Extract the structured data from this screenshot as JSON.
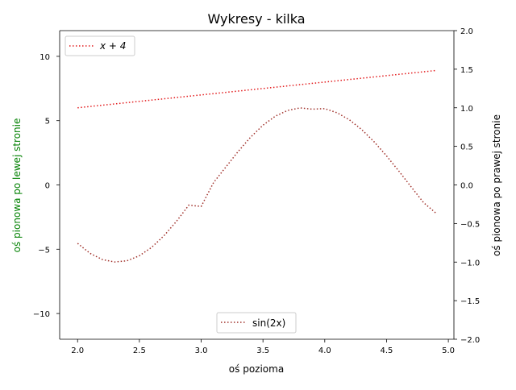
{
  "chart_data": {
    "type": "line",
    "title": "Wykresy - kilka",
    "xlabel": "oś pozioma",
    "ylabel_left": "oś pionowa po lewej stronie",
    "ylabel_right": "oś pionowa po prawej stronie",
    "colors": {
      "left_label": "#008000",
      "right_label": "#000000",
      "line_left": "#e31a1c",
      "line_right": "#a0302a"
    },
    "xlim": [
      1.855,
      5.045
    ],
    "ylim_left": [
      -12,
      12
    ],
    "ylim_right": [
      -2,
      2
    ],
    "x_ticks": [
      "2.0",
      "2.5",
      "3.0",
      "3.5",
      "4.0",
      "4.5",
      "5.0"
    ],
    "y_ticks_left": [
      "−10",
      "−5",
      "0",
      "5",
      "10"
    ],
    "y_ticks_right": [
      "−2.0",
      "−1.5",
      "−1.0",
      "−0.5",
      "0.0",
      "0.5",
      "1.0",
      "1.5",
      "2.0"
    ],
    "grid": false,
    "series": [
      {
        "name": "x + 4",
        "axis": "left",
        "x_start": 2.0,
        "x_end": 4.9,
        "x_step": 0.1,
        "y": [
          6.0,
          6.1,
          6.2,
          6.3,
          6.4,
          6.5,
          6.6,
          6.7,
          6.8,
          6.9,
          7.0,
          7.1,
          7.2,
          7.3,
          7.4,
          7.5,
          7.6,
          7.7,
          7.8,
          7.9,
          8.0,
          8.1,
          8.2,
          8.3,
          8.4,
          8.5,
          8.6,
          8.7,
          8.8,
          8.9
        ],
        "legend_position": "upper left"
      },
      {
        "name": "sin(2x)",
        "axis": "right",
        "x_start": 2.0,
        "x_end": 4.9,
        "x_step": 0.1,
        "y": [
          -0.757,
          -0.886,
          -0.967,
          -0.999,
          -0.983,
          -0.918,
          -0.808,
          -0.657,
          -0.472,
          -0.262,
          -0.279,
          0.03,
          0.233,
          0.435,
          0.619,
          0.774,
          0.891,
          0.966,
          0.998,
          0.982,
          0.989,
          0.935,
          0.843,
          0.716,
          0.558,
          0.376,
          0.178,
          -0.027,
          -0.23,
          -0.366
        ],
        "legend_position": "lower center"
      }
    ]
  }
}
